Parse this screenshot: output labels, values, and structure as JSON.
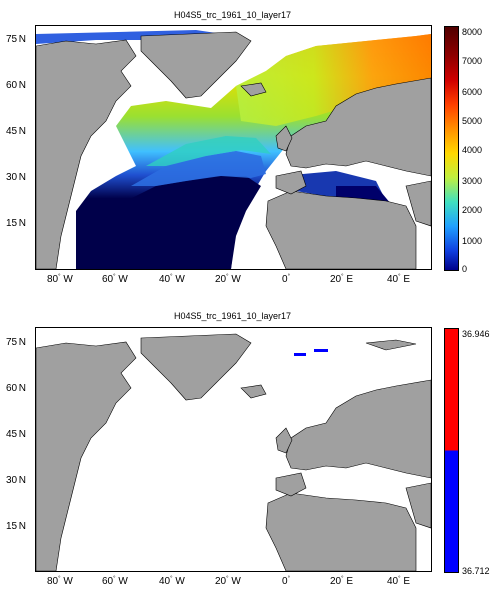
{
  "panels": [
    {
      "title": "H04S5_trc_1961_10_layer17",
      "colorbar_ticks": [
        "8000",
        "7000",
        "6000",
        "5000",
        "4000",
        "3000",
        "2000",
        "1000",
        "0"
      ],
      "colorbar_range": [
        0,
        8000
      ],
      "colormap": "jet"
    },
    {
      "title": "H04S5_trc_1961_10_layer17",
      "colorbar_ticks": [
        "36.946",
        "36.712"
      ],
      "colorbar_range": [
        36.712,
        36.946
      ],
      "colormap": "red-blue"
    }
  ],
  "lon_labels": [
    "80",
    "60",
    "40",
    "20",
    "0",
    "20",
    "40"
  ],
  "lon_suffixes": [
    "W",
    "W",
    "W",
    "W",
    "",
    "E",
    "E"
  ],
  "lat_labels": [
    "75",
    "60",
    "45",
    "30",
    "15"
  ],
  "lat_suffix": "N",
  "colors": {
    "land": "#a0a0a0",
    "ocean": "#ffffff",
    "deep": "#00004a"
  }
}
